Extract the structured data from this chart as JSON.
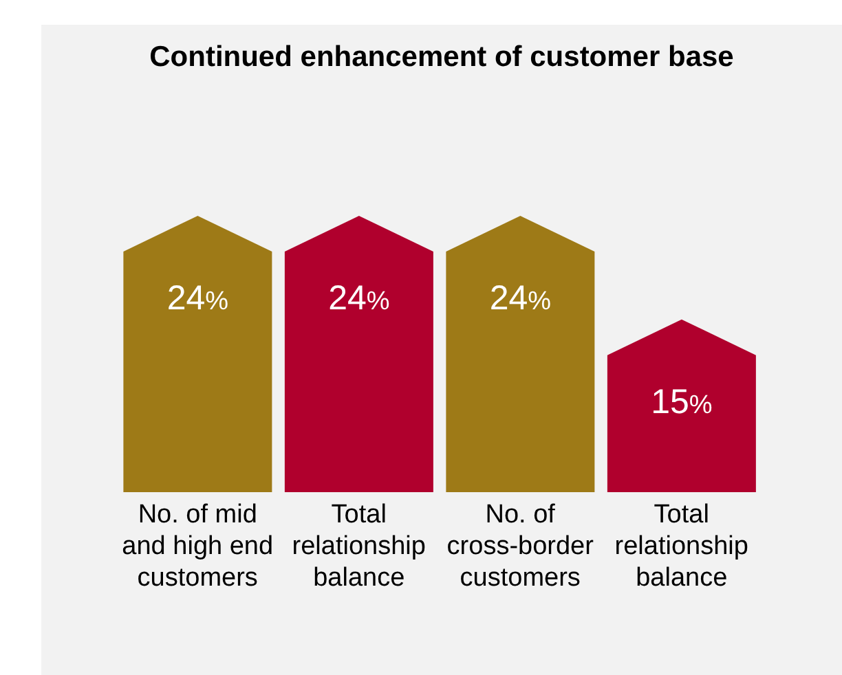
{
  "chart_data": {
    "type": "bar",
    "title": "Continued enhancement of customer base",
    "categories": [
      "No. of mid and high end customers",
      "Total relationship balance",
      "No. of cross-border customers",
      "Total relationship balance"
    ],
    "values": [
      24,
      24,
      24,
      15
    ],
    "colors": [
      "#9e7a17",
      "#b0002d",
      "#9e7a17",
      "#b0002d"
    ],
    "value_labels": [
      "24%",
      "24%",
      "24%",
      "15%"
    ]
  }
}
